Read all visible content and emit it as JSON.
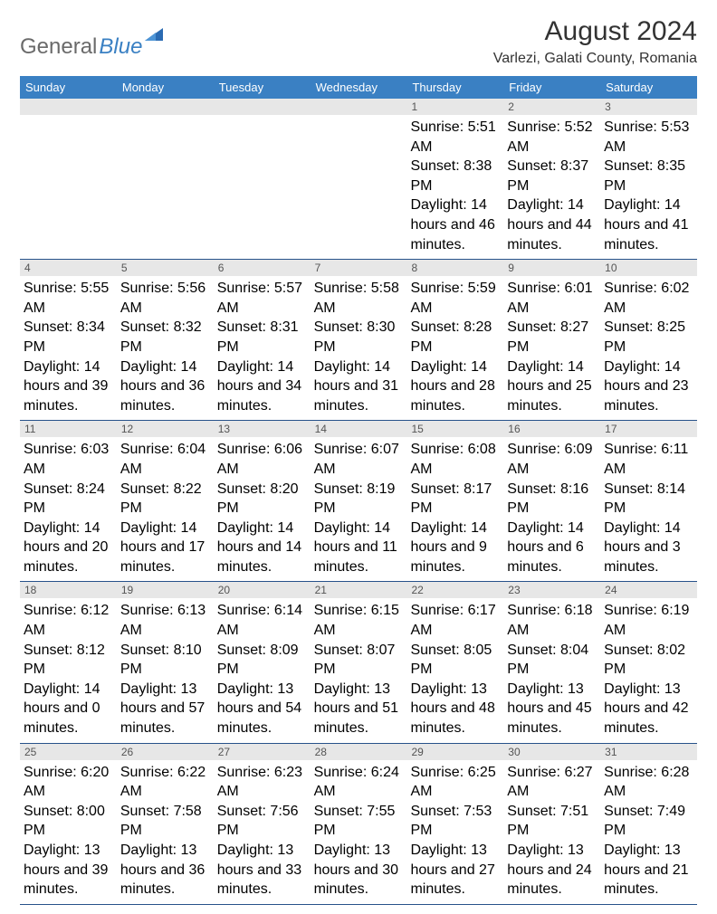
{
  "logo": {
    "text_gray": "General",
    "text_blue": "Blue"
  },
  "title": "August 2024",
  "location": "Varlezi, Galati County, Romania",
  "weekdays": [
    "Sunday",
    "Monday",
    "Tuesday",
    "Wednesday",
    "Thursday",
    "Friday",
    "Saturday"
  ],
  "header_bg": "#3a80c3",
  "header_fg": "#ffffff",
  "daynum_bg": "#e7e7e7",
  "divider_color": "#27528a",
  "weeks": [
    [
      null,
      null,
      null,
      null,
      {
        "n": "1",
        "sunrise": "5:51 AM",
        "sunset": "8:38 PM",
        "daylight": "14 hours and 46 minutes."
      },
      {
        "n": "2",
        "sunrise": "5:52 AM",
        "sunset": "8:37 PM",
        "daylight": "14 hours and 44 minutes."
      },
      {
        "n": "3",
        "sunrise": "5:53 AM",
        "sunset": "8:35 PM",
        "daylight": "14 hours and 41 minutes."
      }
    ],
    [
      {
        "n": "4",
        "sunrise": "5:55 AM",
        "sunset": "8:34 PM",
        "daylight": "14 hours and 39 minutes."
      },
      {
        "n": "5",
        "sunrise": "5:56 AM",
        "sunset": "8:32 PM",
        "daylight": "14 hours and 36 minutes."
      },
      {
        "n": "6",
        "sunrise": "5:57 AM",
        "sunset": "8:31 PM",
        "daylight": "14 hours and 34 minutes."
      },
      {
        "n": "7",
        "sunrise": "5:58 AM",
        "sunset": "8:30 PM",
        "daylight": "14 hours and 31 minutes."
      },
      {
        "n": "8",
        "sunrise": "5:59 AM",
        "sunset": "8:28 PM",
        "daylight": "14 hours and 28 minutes."
      },
      {
        "n": "9",
        "sunrise": "6:01 AM",
        "sunset": "8:27 PM",
        "daylight": "14 hours and 25 minutes."
      },
      {
        "n": "10",
        "sunrise": "6:02 AM",
        "sunset": "8:25 PM",
        "daylight": "14 hours and 23 minutes."
      }
    ],
    [
      {
        "n": "11",
        "sunrise": "6:03 AM",
        "sunset": "8:24 PM",
        "daylight": "14 hours and 20 minutes."
      },
      {
        "n": "12",
        "sunrise": "6:04 AM",
        "sunset": "8:22 PM",
        "daylight": "14 hours and 17 minutes."
      },
      {
        "n": "13",
        "sunrise": "6:06 AM",
        "sunset": "8:20 PM",
        "daylight": "14 hours and 14 minutes."
      },
      {
        "n": "14",
        "sunrise": "6:07 AM",
        "sunset": "8:19 PM",
        "daylight": "14 hours and 11 minutes."
      },
      {
        "n": "15",
        "sunrise": "6:08 AM",
        "sunset": "8:17 PM",
        "daylight": "14 hours and 9 minutes."
      },
      {
        "n": "16",
        "sunrise": "6:09 AM",
        "sunset": "8:16 PM",
        "daylight": "14 hours and 6 minutes."
      },
      {
        "n": "17",
        "sunrise": "6:11 AM",
        "sunset": "8:14 PM",
        "daylight": "14 hours and 3 minutes."
      }
    ],
    [
      {
        "n": "18",
        "sunrise": "6:12 AM",
        "sunset": "8:12 PM",
        "daylight": "14 hours and 0 minutes."
      },
      {
        "n": "19",
        "sunrise": "6:13 AM",
        "sunset": "8:10 PM",
        "daylight": "13 hours and 57 minutes."
      },
      {
        "n": "20",
        "sunrise": "6:14 AM",
        "sunset": "8:09 PM",
        "daylight": "13 hours and 54 minutes."
      },
      {
        "n": "21",
        "sunrise": "6:15 AM",
        "sunset": "8:07 PM",
        "daylight": "13 hours and 51 minutes."
      },
      {
        "n": "22",
        "sunrise": "6:17 AM",
        "sunset": "8:05 PM",
        "daylight": "13 hours and 48 minutes."
      },
      {
        "n": "23",
        "sunrise": "6:18 AM",
        "sunset": "8:04 PM",
        "daylight": "13 hours and 45 minutes."
      },
      {
        "n": "24",
        "sunrise": "6:19 AM",
        "sunset": "8:02 PM",
        "daylight": "13 hours and 42 minutes."
      }
    ],
    [
      {
        "n": "25",
        "sunrise": "6:20 AM",
        "sunset": "8:00 PM",
        "daylight": "13 hours and 39 minutes."
      },
      {
        "n": "26",
        "sunrise": "6:22 AM",
        "sunset": "7:58 PM",
        "daylight": "13 hours and 36 minutes."
      },
      {
        "n": "27",
        "sunrise": "6:23 AM",
        "sunset": "7:56 PM",
        "daylight": "13 hours and 33 minutes."
      },
      {
        "n": "28",
        "sunrise": "6:24 AM",
        "sunset": "7:55 PM",
        "daylight": "13 hours and 30 minutes."
      },
      {
        "n": "29",
        "sunrise": "6:25 AM",
        "sunset": "7:53 PM",
        "daylight": "13 hours and 27 minutes."
      },
      {
        "n": "30",
        "sunrise": "6:27 AM",
        "sunset": "7:51 PM",
        "daylight": "13 hours and 24 minutes."
      },
      {
        "n": "31",
        "sunrise": "6:28 AM",
        "sunset": "7:49 PM",
        "daylight": "13 hours and 21 minutes."
      }
    ]
  ],
  "labels": {
    "sunrise": "Sunrise: ",
    "sunset": "Sunset: ",
    "daylight": "Daylight: "
  }
}
